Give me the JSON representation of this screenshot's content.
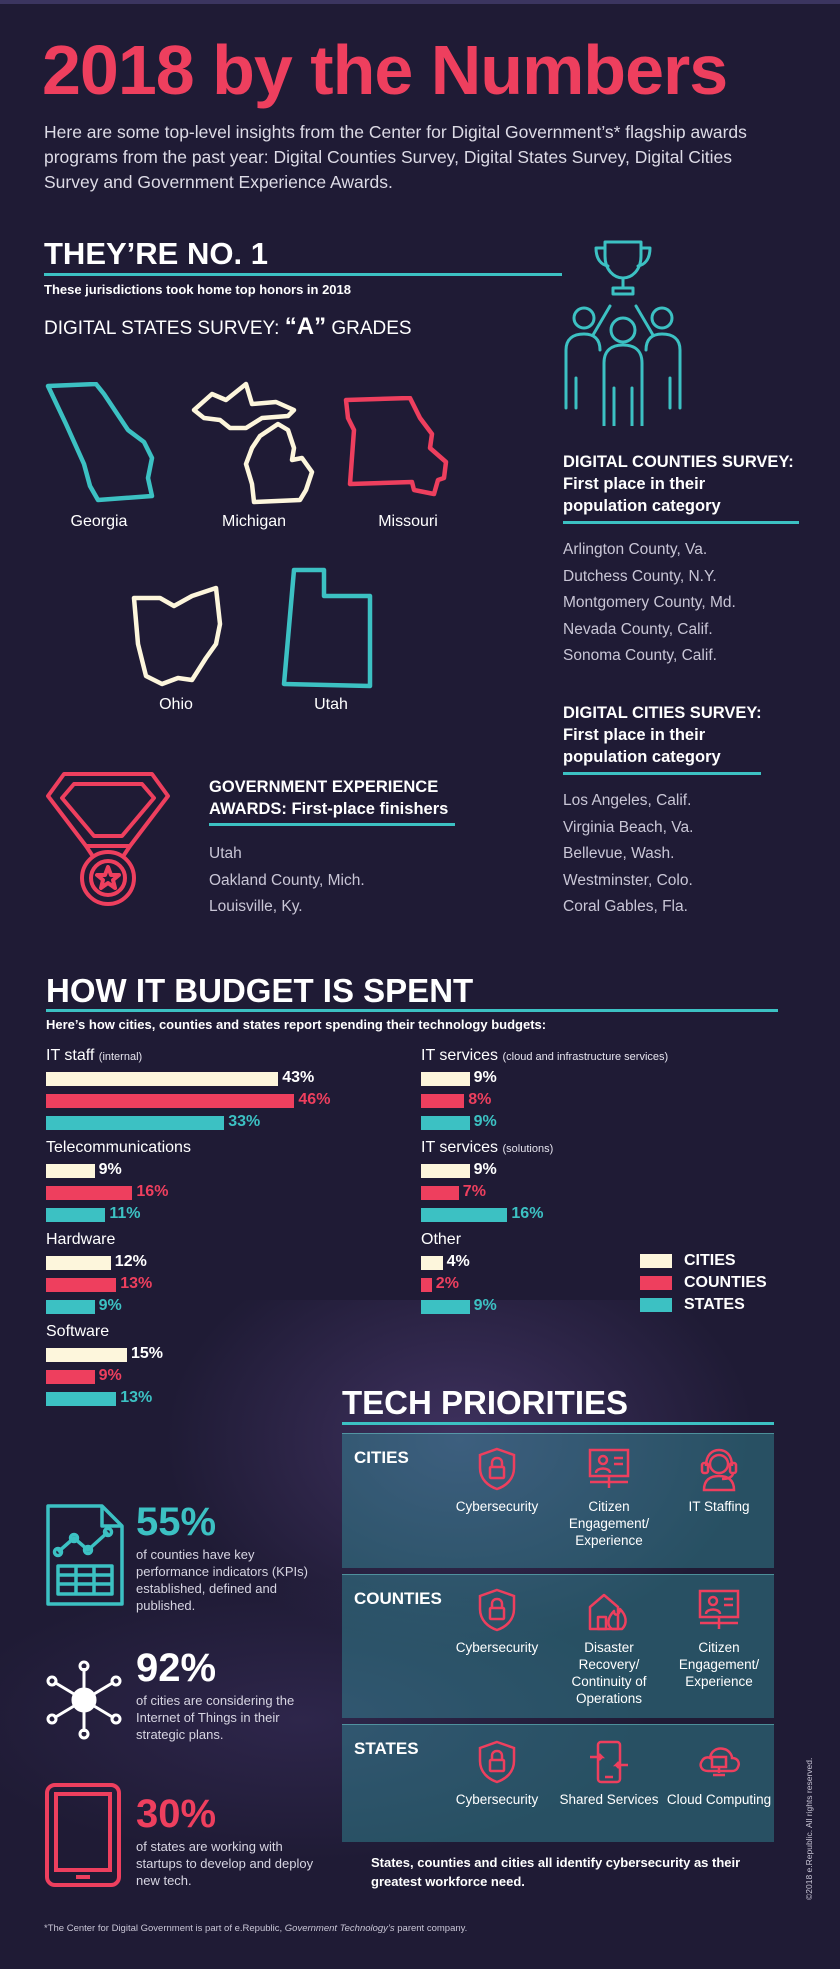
{
  "colors": {
    "cities": "#fdf6dc",
    "counties": "#ee3f5e",
    "states": "#3cc1c3",
    "accent_red": "#ee3f5e",
    "accent_teal": "#3cc1c3",
    "background": "#1f1b35"
  },
  "header": {
    "title": "2018 by the Numbers",
    "intro": "Here are some top-level insights from the Center for Digital Government’s* flagship awards programs from the past year: Digital Counties Survey, Digital States Survey, Digital Cities Survey and Government Experience Awards."
  },
  "no1": {
    "heading": "THEY’RE NO. 1",
    "subheading": "These jurisdictions took home top honors in 2018",
    "states_survey_prefix": "DIGITAL STATES SURVEY: ",
    "states_survey_grade": "“A”",
    "states_survey_suffix": " GRADES",
    "states": [
      {
        "name": "Georgia",
        "color": "teal"
      },
      {
        "name": "Michigan",
        "color": "cream"
      },
      {
        "name": "Missouri",
        "color": "red"
      },
      {
        "name": "Ohio",
        "color": "cream"
      },
      {
        "name": "Utah",
        "color": "teal"
      }
    ],
    "counties_title_1": "DIGITAL COUNTIES SURVEY:",
    "counties_title_2": "First place in their",
    "counties_title_3": "population category",
    "counties": [
      "Arlington County, Va.",
      "Dutchess County, N.Y.",
      "Montgomery County, Md.",
      "Nevada County, Calif.",
      "Sonoma County, Calif."
    ],
    "cities_title_1": "DIGITAL CITIES SURVEY:",
    "cities_title_2": "First place in their",
    "cities_title_3": "population category",
    "cities": [
      "Los Angeles, Calif.",
      "Virginia Beach, Va.",
      "Bellevue, Wash.",
      "Westminster, Colo.",
      "Coral Gables, Fla."
    ],
    "gov_exp_title_1": "GOVERNMENT EXPERIENCE",
    "gov_exp_title_2": "AWARDS: First-place finishers",
    "gov_exp": [
      "Utah",
      "Oakland County, Mich.",
      "Louisville, Ky."
    ]
  },
  "budget": {
    "heading": "HOW IT BUDGET IS SPENT",
    "subheading": "Here’s how cities, counties and states report spending their technology budgets:",
    "legend": [
      "CITIES",
      "COUNTIES",
      "STATES"
    ]
  },
  "chart_data": {
    "type": "bar",
    "title": "HOW IT BUDGET IS SPENT",
    "unit": "%",
    "series_names": [
      "CITIES",
      "COUNTIES",
      "STATES"
    ],
    "groups": [
      {
        "label": "IT staff",
        "note": "(internal)",
        "values": [
          43,
          46,
          33
        ]
      },
      {
        "label": "Telecommunications",
        "note": "",
        "values": [
          9,
          16,
          11
        ]
      },
      {
        "label": "Hardware",
        "note": "",
        "values": [
          12,
          13,
          9
        ]
      },
      {
        "label": "Software",
        "note": "",
        "values": [
          15,
          9,
          13
        ]
      },
      {
        "label": "IT services",
        "note": "(cloud and infrastructure services)",
        "values": [
          9,
          8,
          9
        ]
      },
      {
        "label": "IT services",
        "note": "(solutions)",
        "values": [
          9,
          7,
          16
        ]
      },
      {
        "label": "Other",
        "note": "",
        "values": [
          4,
          2,
          9
        ]
      }
    ]
  },
  "stats": [
    {
      "value": "55%",
      "text": "of counties have key performance indicators (KPIs) established, defined and published.",
      "color": "#3cc1c3",
      "icon": "document-chart-icon"
    },
    {
      "value": "92%",
      "text": "of cities are considering the Internet of Things in their strategic plans.",
      "color": "#ffffff",
      "icon": "network-hub-icon"
    },
    {
      "value": "30%",
      "text": "of states are working with startups to develop and deploy new tech.",
      "color": "#ee3f5e",
      "icon": "tablet-icon"
    }
  ],
  "priorities": {
    "heading": "TECH PRIORITIES",
    "groups": [
      {
        "label": "CITIES",
        "items": [
          "Cybersecurity",
          "Citizen Engagement/ Experience",
          "IT Staffing"
        ],
        "icons": [
          "shield-lock-icon",
          "presentation-icon",
          "headset-icon"
        ]
      },
      {
        "label": "COUNTIES",
        "items": [
          "Cybersecurity",
          "Disaster Recovery/ Continuity of Operations",
          "Citizen Engagement/ Experience"
        ],
        "icons": [
          "shield-lock-icon",
          "fire-house-icon",
          "presentation-icon"
        ]
      },
      {
        "label": "STATES",
        "items": [
          "Cybersecurity",
          "Shared Services",
          "Cloud Computing"
        ],
        "icons": [
          "shield-lock-icon",
          "phone-share-icon",
          "cloud-computer-icon"
        ]
      }
    ],
    "footer": "States, counties and cities all identify cybersecurity as their greatest workforce need."
  },
  "footnote_pre": "*The Center for Digital Government is part of e.Republic, ",
  "footnote_italic": "Government Technology’s",
  "footnote_post": " parent company.",
  "copyright": "©2018 e.Republic. All rights reserved."
}
